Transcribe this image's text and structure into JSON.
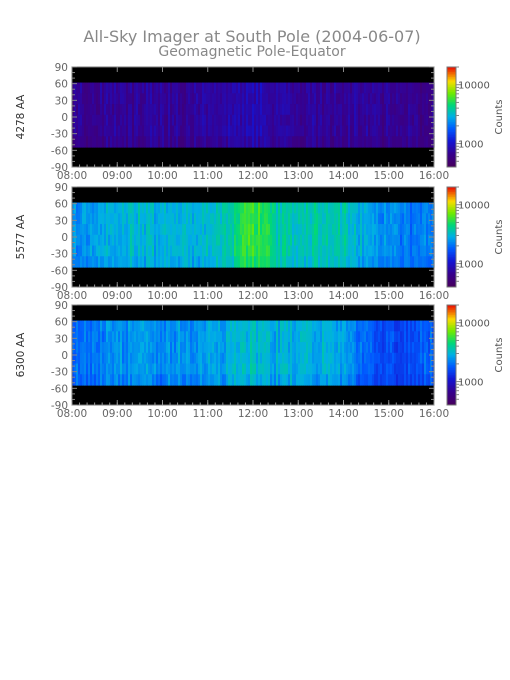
{
  "title": "All-Sky Imager at South Pole (2004-06-07)",
  "subtitle": "Geomagnetic Pole-Equator",
  "chart_data": [
    {
      "type": "heatmap",
      "ylabel": "4278 AA",
      "x_ticks": [
        "08:00",
        "09:00",
        "10:00",
        "11:00",
        "12:00",
        "13:00",
        "14:00",
        "15:00",
        "16:00"
      ],
      "xlim": [
        "08:00",
        "16:00"
      ],
      "y_ticks": [
        90,
        60,
        30,
        0,
        -30,
        -60,
        -90
      ],
      "ylim": [
        -90,
        90
      ],
      "data_ylim": [
        -54,
        62
      ],
      "colorbar": {
        "label": "Counts",
        "ticks": [
          1000,
          10000
        ],
        "scale": "log"
      },
      "profile": {
        "hours": [
          8,
          8.5,
          9,
          9.5,
          10,
          10.5,
          11,
          11.5,
          11.8,
          12,
          12.2,
          12.5,
          13,
          13.5,
          14,
          14.5,
          15,
          15.5,
          16
        ],
        "level": [
          0.13,
          0.13,
          0.14,
          0.14,
          0.14,
          0.14,
          0.15,
          0.16,
          0.18,
          0.2,
          0.18,
          0.16,
          0.15,
          0.15,
          0.15,
          0.14,
          0.13,
          0.12,
          0.12
        ]
      }
    },
    {
      "type": "heatmap",
      "ylabel": "5577 AA",
      "x_ticks": [
        "08:00",
        "09:00",
        "10:00",
        "11:00",
        "12:00",
        "13:00",
        "14:00",
        "15:00",
        "16:00"
      ],
      "xlim": [
        "08:00",
        "16:00"
      ],
      "y_ticks": [
        90,
        60,
        30,
        0,
        -30,
        -60,
        -90
      ],
      "ylim": [
        -90,
        90
      ],
      "data_ylim": [
        -54,
        62
      ],
      "colorbar": {
        "label": "Counts",
        "ticks": [
          1000,
          10000
        ],
        "scale": "log"
      },
      "profile": {
        "hours": [
          8,
          8.5,
          9,
          9.5,
          10,
          10.5,
          11,
          11.5,
          11.8,
          12,
          12.2,
          12.5,
          13,
          13.5,
          14,
          14.5,
          15,
          15.5,
          16
        ],
        "level": [
          0.44,
          0.48,
          0.52,
          0.52,
          0.5,
          0.5,
          0.52,
          0.57,
          0.66,
          0.68,
          0.66,
          0.58,
          0.55,
          0.57,
          0.56,
          0.48,
          0.44,
          0.42,
          0.44
        ]
      }
    },
    {
      "type": "heatmap",
      "ylabel": "6300 AA",
      "x_ticks": [
        "08:00",
        "09:00",
        "10:00",
        "11:00",
        "12:00",
        "13:00",
        "14:00",
        "15:00",
        "16:00"
      ],
      "xlim": [
        "08:00",
        "16:00"
      ],
      "y_ticks": [
        90,
        60,
        30,
        0,
        -30,
        -60,
        -90
      ],
      "ylim": [
        -90,
        90
      ],
      "data_ylim": [
        -54,
        62
      ],
      "colorbar": {
        "label": "Counts",
        "ticks": [
          1000,
          10000
        ],
        "scale": "log"
      },
      "profile": {
        "hours": [
          8,
          8.5,
          9,
          9.5,
          10,
          10.5,
          11,
          11.5,
          11.8,
          12,
          12.2,
          12.5,
          13,
          13.5,
          14,
          14.5,
          15,
          15.5,
          16
        ],
        "level": [
          0.4,
          0.42,
          0.46,
          0.46,
          0.45,
          0.46,
          0.48,
          0.5,
          0.52,
          0.54,
          0.52,
          0.5,
          0.5,
          0.5,
          0.47,
          0.38,
          0.34,
          0.36,
          0.4
        ]
      }
    }
  ]
}
